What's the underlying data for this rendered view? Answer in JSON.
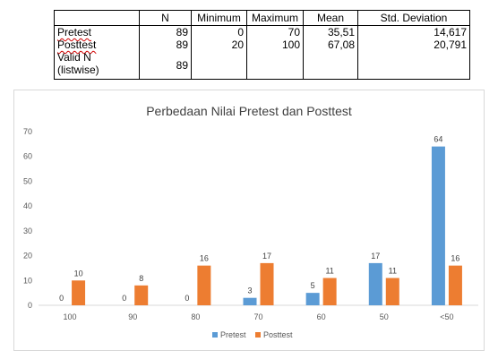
{
  "table": {
    "headers": [
      "",
      "N",
      "Minimum",
      "Maximum",
      "Mean",
      "Std. Deviation"
    ],
    "rows": [
      {
        "label": "Pretest",
        "n": "89",
        "min": "0",
        "max": "70",
        "mean": "35,51",
        "sd": "14,617"
      },
      {
        "label": "Posttest",
        "n": "89",
        "min": "20",
        "max": "100",
        "mean": "67,08",
        "sd": "20,791"
      },
      {
        "label_line1": "Valid N",
        "label_line2": "(listwise)",
        "n": "89",
        "min": "",
        "max": "",
        "mean": "",
        "sd": ""
      }
    ]
  },
  "chart_data": {
    "type": "bar",
    "title": "Perbedaan Nilai Pretest dan Posttest",
    "xlabel": "",
    "ylabel": "",
    "categories": [
      "100",
      "90",
      "80",
      "70",
      "60",
      "50",
      "<50"
    ],
    "series": [
      {
        "name": "Pretest",
        "color": "#5b9bd5",
        "values": [
          0,
          0,
          0,
          3,
          5,
          17,
          64
        ]
      },
      {
        "name": "Posttest",
        "color": "#ed7d31",
        "values": [
          10,
          8,
          16,
          17,
          11,
          11,
          16
        ]
      }
    ],
    "ylim": [
      0,
      70
    ],
    "yticks": [
      0,
      10,
      20,
      30,
      40,
      50,
      60,
      70
    ],
    "grid": false,
    "legend": "bottom",
    "data_labels": true
  }
}
